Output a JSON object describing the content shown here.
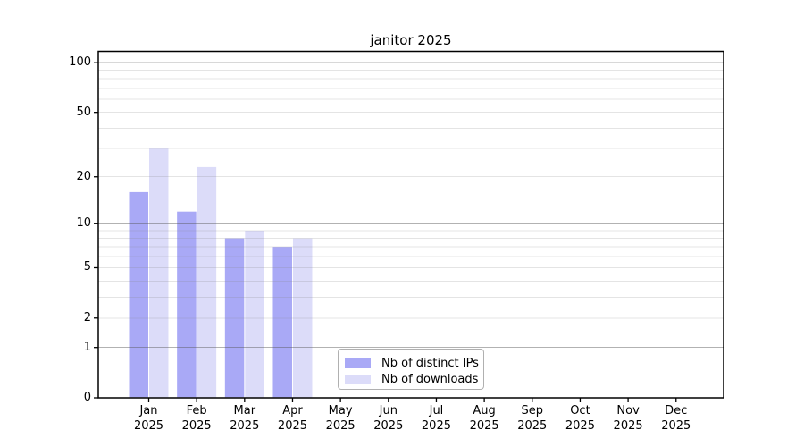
{
  "page": {
    "background": "#ffffff",
    "plot_border_color": "#000000",
    "major_grid_color": "#b3b3b3",
    "minor_grid_color": "#e9e9e9"
  },
  "chart_data": {
    "type": "bar",
    "title": "janitor 2025",
    "categories": [
      {
        "month": "Jan",
        "year": "2025"
      },
      {
        "month": "Feb",
        "year": "2025"
      },
      {
        "month": "Mar",
        "year": "2025"
      },
      {
        "month": "Apr",
        "year": "2025"
      },
      {
        "month": "May",
        "year": "2025"
      },
      {
        "month": "Jun",
        "year": "2025"
      },
      {
        "month": "Jul",
        "year": "2025"
      },
      {
        "month": "Aug",
        "year": "2025"
      },
      {
        "month": "Sep",
        "year": "2025"
      },
      {
        "month": "Oct",
        "year": "2025"
      },
      {
        "month": "Nov",
        "year": "2025"
      },
      {
        "month": "Dec",
        "year": "2025"
      }
    ],
    "series": [
      {
        "name": "Nb of distinct IPs",
        "color": "#a9a9f6",
        "values": [
          16,
          12,
          8,
          7,
          null,
          null,
          null,
          null,
          null,
          null,
          null,
          null
        ]
      },
      {
        "name": "Nb of downloads",
        "color": "#dcdcf9",
        "values": [
          30,
          23,
          9,
          8,
          null,
          null,
          null,
          null,
          null,
          null,
          null,
          null
        ]
      }
    ],
    "y_axis": {
      "ticks": [
        0,
        1,
        2,
        5,
        10,
        20,
        50,
        100
      ],
      "scale": "log10(value+1)",
      "major_gridline_values": [
        1,
        10,
        100
      ],
      "minor_gridline_values": [
        2,
        3,
        4,
        5,
        6,
        7,
        8,
        9,
        20,
        30,
        40,
        50,
        60,
        70,
        80,
        90
      ]
    },
    "legend": {
      "position": "inside-bottom-center"
    },
    "grid": true
  }
}
